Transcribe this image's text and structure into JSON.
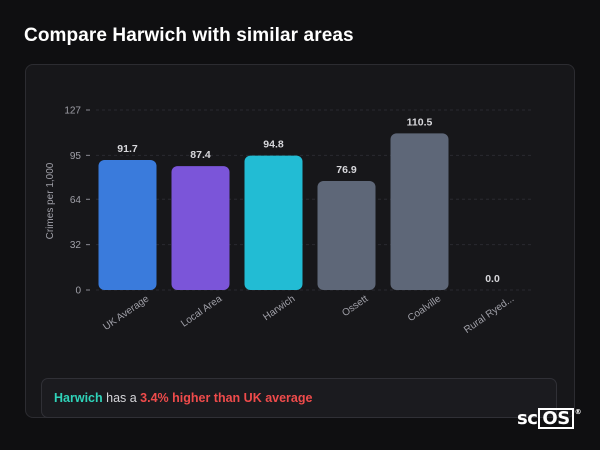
{
  "title": "Compare Harwich with similar areas",
  "chart_data": {
    "type": "bar",
    "ylabel": "Crimes per 1,000",
    "xlabel": "",
    "ylim": [
      0,
      127
    ],
    "yticks": [
      0,
      32,
      64,
      95,
      127
    ],
    "categories": [
      "UK Average",
      "Local Area",
      "Harwich",
      "Ossett",
      "Coalville",
      "Rural Ryed..."
    ],
    "values": [
      91.7,
      87.4,
      94.8,
      76.9,
      110.5,
      0.0
    ],
    "value_labels": [
      "91.7",
      "87.4",
      "94.8",
      "76.9",
      "110.5",
      "0.0"
    ],
    "colors": [
      "#3a7bdc",
      "#7b55d9",
      "#22bcd4",
      "#5e6778",
      "#5e6778",
      "#5e6778"
    ],
    "grid": "horizontal-dashed"
  },
  "summary": {
    "area": "Harwich",
    "connector": " has a ",
    "stat": "3.4% higher than UK average"
  },
  "logo": {
    "prefix": "sc",
    "boxed": "OS",
    "mark": "®"
  }
}
